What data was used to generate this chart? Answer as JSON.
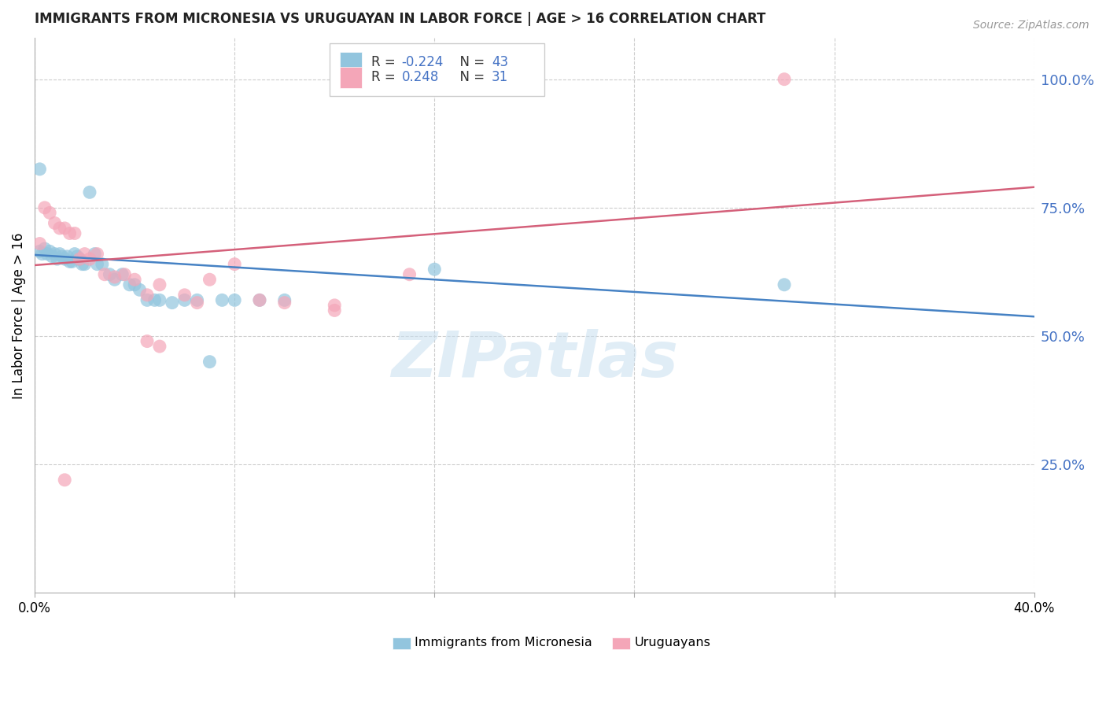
{
  "title": "IMMIGRANTS FROM MICRONESIA VS URUGUAYAN IN LABOR FORCE | AGE > 16 CORRELATION CHART",
  "source_text": "Source: ZipAtlas.com",
  "ylabel": "In Labor Force | Age > 16",
  "xlim": [
    0.0,
    0.4
  ],
  "ylim": [
    0.0,
    1.08
  ],
  "yticks": [
    0.25,
    0.5,
    0.75,
    1.0
  ],
  "ytick_labels": [
    "25.0%",
    "50.0%",
    "75.0%",
    "100.0%"
  ],
  "xticks": [
    0.0,
    0.08,
    0.16,
    0.24,
    0.32,
    0.4
  ],
  "blue_color": "#92c5de",
  "pink_color": "#f4a6b8",
  "blue_line_color": "#4682c4",
  "pink_line_color": "#d4607a",
  "legend_r_blue": "-0.224",
  "legend_n_blue": "43",
  "legend_r_pink": "0.248",
  "legend_n_pink": "31",
  "legend_label_blue": "Immigrants from Micronesia",
  "legend_label_pink": "Uruguayans",
  "watermark": "ZIPatlas",
  "blue_x": [
    0.002,
    0.003,
    0.004,
    0.005,
    0.006,
    0.007,
    0.008,
    0.009,
    0.01,
    0.011,
    0.012,
    0.013,
    0.014,
    0.015,
    0.016,
    0.017,
    0.018,
    0.019,
    0.02,
    0.022,
    0.024,
    0.025,
    0.027,
    0.03,
    0.032,
    0.035,
    0.038,
    0.04,
    0.042,
    0.045,
    0.048,
    0.05,
    0.055,
    0.06,
    0.065,
    0.07,
    0.075,
    0.08,
    0.09,
    0.1,
    0.16,
    0.3,
    0.002
  ],
  "blue_y": [
    0.665,
    0.66,
    0.67,
    0.66,
    0.665,
    0.655,
    0.66,
    0.65,
    0.66,
    0.655,
    0.65,
    0.655,
    0.645,
    0.645,
    0.66,
    0.655,
    0.65,
    0.64,
    0.64,
    0.78,
    0.66,
    0.64,
    0.64,
    0.62,
    0.61,
    0.62,
    0.6,
    0.6,
    0.59,
    0.57,
    0.57,
    0.57,
    0.565,
    0.57,
    0.57,
    0.45,
    0.57,
    0.57,
    0.57,
    0.57,
    0.63,
    0.6,
    0.825
  ],
  "pink_x": [
    0.002,
    0.004,
    0.006,
    0.008,
    0.01,
    0.012,
    0.014,
    0.016,
    0.018,
    0.02,
    0.022,
    0.025,
    0.028,
    0.032,
    0.036,
    0.04,
    0.045,
    0.05,
    0.06,
    0.07,
    0.08,
    0.09,
    0.1,
    0.12,
    0.045,
    0.12,
    0.15,
    0.3,
    0.05,
    0.065,
    0.012
  ],
  "pink_y": [
    0.68,
    0.75,
    0.74,
    0.72,
    0.71,
    0.71,
    0.7,
    0.7,
    0.65,
    0.66,
    0.65,
    0.66,
    0.62,
    0.615,
    0.62,
    0.61,
    0.58,
    0.6,
    0.58,
    0.61,
    0.64,
    0.57,
    0.565,
    0.56,
    0.49,
    0.55,
    0.62,
    1.0,
    0.48,
    0.565,
    0.22
  ],
  "blue_trend_x": [
    0.0,
    0.4
  ],
  "blue_trend_y": [
    0.658,
    0.538
  ],
  "pink_trend_x": [
    0.0,
    0.4
  ],
  "pink_trend_y": [
    0.638,
    0.79
  ]
}
